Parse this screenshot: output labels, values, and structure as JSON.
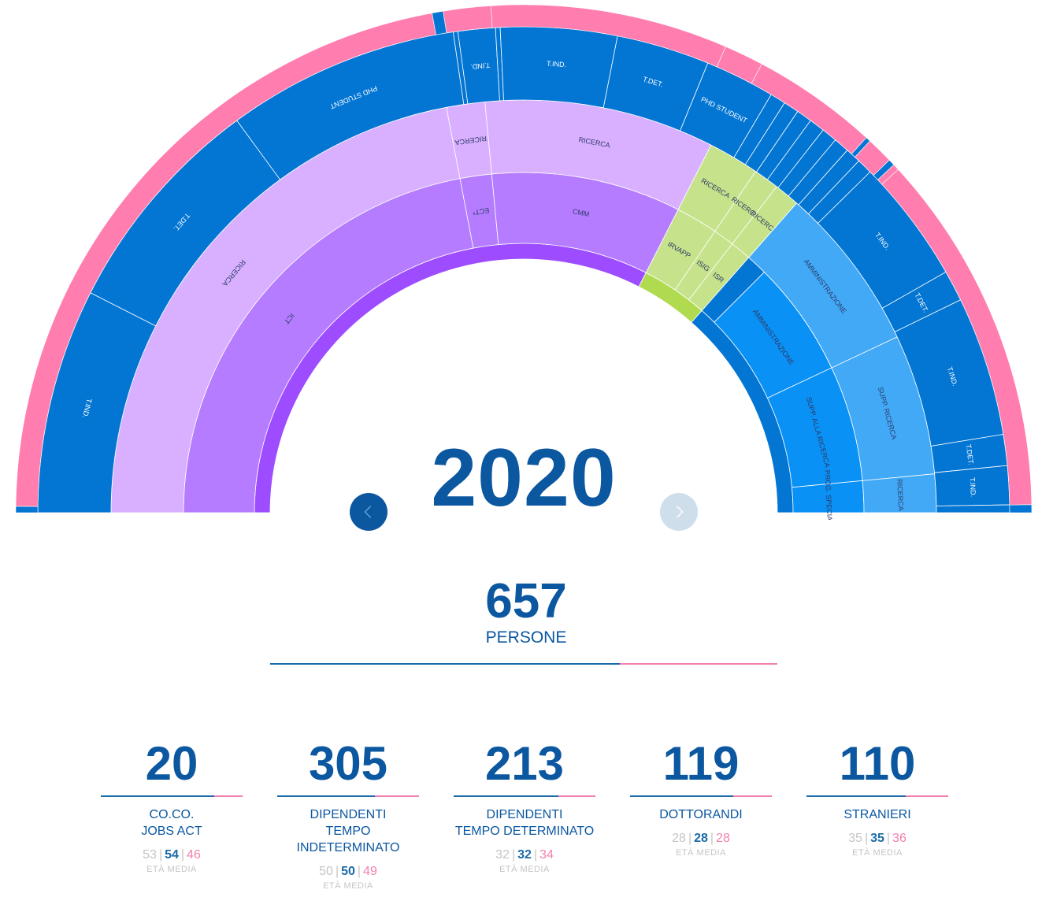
{
  "year": "2020",
  "total": {
    "value": "657",
    "label": "PERSONE",
    "male_share": 0.69
  },
  "colors": {
    "pink": "#ff7eaf",
    "blue": "#0375d3",
    "lilac": "#d8b0ff",
    "violet": "#b57cff",
    "purple": "#9d4dff",
    "green": "#c6e28b",
    "greenDark": "#b0db50",
    "sky": "#0a91f5",
    "skyLight": "#42a9f7"
  },
  "chart_data": {
    "type": "sunburst",
    "rings": [
      {
        "name": "ring1",
        "segments": [
          {
            "name": "",
            "value": 65,
            "color": "purple"
          },
          {
            "name": "",
            "value": 8,
            "color": "greenDark"
          },
          {
            "name": "",
            "value": 27,
            "color": "blue"
          }
        ]
      },
      {
        "name": "ring2",
        "segments": [
          {
            "name": "ICT",
            "value": 44,
            "color": "violet"
          },
          {
            "name": "ECT*",
            "value": 3,
            "color": "violet"
          },
          {
            "name": "CMM",
            "value": 18,
            "color": "violet"
          },
          {
            "name": "IRVAPP",
            "value": 4,
            "color": "green"
          },
          {
            "name": "ISIG",
            "value": 2,
            "color": "green"
          },
          {
            "name": "ISR",
            "value": 2,
            "color": "green"
          },
          {
            "name": "",
            "value": 2,
            "color": "blue"
          },
          {
            "name": "AMMINISTRAZIONE",
            "value": 11,
            "color": "sky"
          },
          {
            "name": "SUPP. ALLA RICERCA",
            "value": 11,
            "color": "sky"
          },
          {
            "name": "PROG. SPECIALI",
            "value": 3,
            "color": "sky"
          }
        ]
      },
      {
        "name": "ring3",
        "segments": [
          {
            "name": "RICERCA",
            "value": 44,
            "color": "lilac"
          },
          {
            "name": "RICERCA",
            "value": 3,
            "color": "lilac"
          },
          {
            "name": "RICERCA",
            "value": 18,
            "color": "lilac"
          },
          {
            "name": "RICERCA",
            "value": 4,
            "color": "green"
          },
          {
            "name": "RICERCA",
            "value": 2,
            "color": "green"
          },
          {
            "name": "RICERCA",
            "value": 2,
            "color": "green"
          },
          {
            "name": "AMMINISTRAZIONE",
            "value": 13,
            "color": "skyLight"
          },
          {
            "name": "SUPP. RICERCA",
            "value": 11,
            "color": "skyLight"
          },
          {
            "name": "RICERCA",
            "value": 3,
            "color": "skyLight"
          }
        ]
      },
      {
        "name": "ring4",
        "segments": [
          {
            "name": "T.IND.",
            "value": 14.5,
            "color": "blue"
          },
          {
            "name": "T.DET.",
            "value": 14.5,
            "color": "blue"
          },
          {
            "name": "PHD STUDENT",
            "value": 15,
            "color": "blue"
          },
          {
            "name": "",
            "value": 0.3,
            "color": "blue"
          },
          {
            "name": "T.IND.",
            "value": 2.4,
            "color": "blue"
          },
          {
            "name": "",
            "value": 0.3,
            "color": "blue"
          },
          {
            "name": "T.IND.",
            "value": 7.5,
            "color": "blue"
          },
          {
            "name": "T.DET.",
            "value": 6,
            "color": "blue"
          },
          {
            "name": "PHD STUDENT",
            "value": 4.5,
            "color": "blue"
          },
          {
            "name": "",
            "value": 1,
            "color": "blue"
          },
          {
            "name": "",
            "value": 1,
            "color": "blue"
          },
          {
            "name": "",
            "value": 1,
            "color": "blue"
          },
          {
            "name": "",
            "value": 1,
            "color": "blue"
          },
          {
            "name": "",
            "value": 1,
            "color": "blue"
          },
          {
            "name": "",
            "value": 1,
            "color": "blue"
          },
          {
            "name": "",
            "value": 1,
            "color": "blue"
          },
          {
            "name": "",
            "value": 1,
            "color": "blue"
          },
          {
            "name": "T.IND.",
            "value": 8,
            "color": "blue"
          },
          {
            "name": "T.DET.",
            "value": 2,
            "color": "blue"
          },
          {
            "name": "T.IND.",
            "value": 9,
            "color": "blue"
          },
          {
            "name": "T.DET.",
            "value": 2,
            "color": "blue"
          },
          {
            "name": "T.IND.",
            "value": 2.5,
            "color": "blue"
          },
          {
            "name": "",
            "value": 0.5,
            "color": "blue"
          }
        ]
      },
      {
        "name": "ring5",
        "segments": [
          {
            "name": "",
            "value": 0.4,
            "color": "blue"
          },
          {
            "name": "",
            "value": 43.6,
            "color": "pink"
          },
          {
            "name": "",
            "value": 0.7,
            "color": "blue"
          },
          {
            "name": "",
            "value": 3,
            "color": "pink"
          },
          {
            "name": "",
            "value": 15,
            "color": "pink"
          },
          {
            "name": "",
            "value": 2.5,
            "color": "pink"
          },
          {
            "name": "",
            "value": 8,
            "color": "pink"
          },
          {
            "name": "",
            "value": 0.3,
            "color": "blue"
          },
          {
            "name": "",
            "value": 1.7,
            "color": "pink"
          },
          {
            "name": "",
            "value": 0.4,
            "color": "blue"
          },
          {
            "name": "",
            "value": 0.4,
            "color": "pink"
          },
          {
            "name": "",
            "value": 23,
            "color": "pink"
          },
          {
            "name": "",
            "value": 0.5,
            "color": "blue"
          }
        ]
      }
    ]
  },
  "stats": [
    {
      "value": "20",
      "title": "CO.CO.\nJOBS ACT",
      "age_all": "53",
      "age_m": "54",
      "age_f": "46",
      "age_label": "ETÀ MEDIA",
      "male_share": 0.8
    },
    {
      "value": "305",
      "title": "DIPENDENTI\nTEMPO INDETERMINATO",
      "age_all": "50",
      "age_m": "50",
      "age_f": "49",
      "age_label": "ETÀ MEDIA",
      "male_share": 0.69
    },
    {
      "value": "213",
      "title": "DIPENDENTI\nTEMPO DETERMINATO",
      "age_all": "32",
      "age_m": "32",
      "age_f": "34",
      "age_label": "ETÀ MEDIA",
      "male_share": 0.74
    },
    {
      "value": "119",
      "title": "DOTTORANDI",
      "age_all": "28",
      "age_m": "28",
      "age_f": "28",
      "age_label": "ETÀ MEDIA",
      "male_share": 0.73
    },
    {
      "value": "110",
      "title": "STRANIERI",
      "age_all": "35",
      "age_m": "35",
      "age_f": "36",
      "age_label": "ETÀ MEDIA",
      "male_share": 0.7
    }
  ]
}
